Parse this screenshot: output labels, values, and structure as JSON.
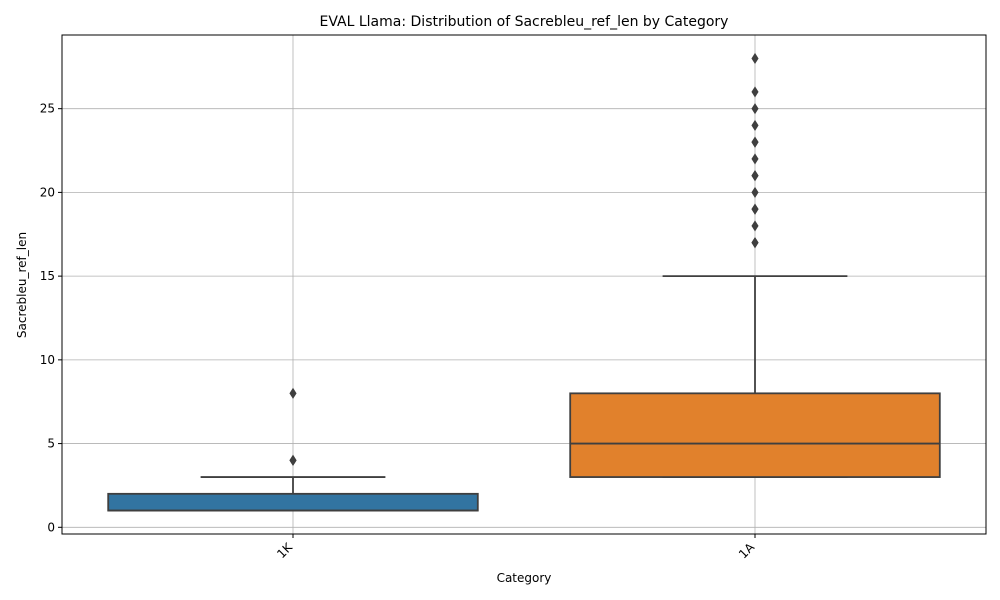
{
  "chart_data": {
    "type": "box",
    "title": "EVAL Llama: Distribution of Sacrebleu_ref_len by Category",
    "xlabel": "Category",
    "ylabel": "Sacrebleu_ref_len",
    "ylim": [
      -0.4,
      29.4
    ],
    "yticks": [
      0,
      5,
      10,
      15,
      20,
      25
    ],
    "grid": true,
    "x_tick_rotation": 45,
    "categories": [
      "1K",
      "1A"
    ],
    "boxes": [
      {
        "category": "1K",
        "color": "#3274a1",
        "whisker_low": 1,
        "q1": 1,
        "median": 1,
        "q3": 2,
        "whisker_high": 3,
        "outliers": [
          4,
          4,
          8
        ]
      },
      {
        "category": "1A",
        "color": "#e1812c",
        "whisker_low": 3,
        "q1": 3,
        "median": 5,
        "q3": 8,
        "whisker_high": 15,
        "outliers": [
          17,
          17,
          18,
          19,
          19,
          20,
          21,
          21,
          22,
          23,
          23,
          24,
          25,
          26,
          28
        ]
      }
    ]
  }
}
